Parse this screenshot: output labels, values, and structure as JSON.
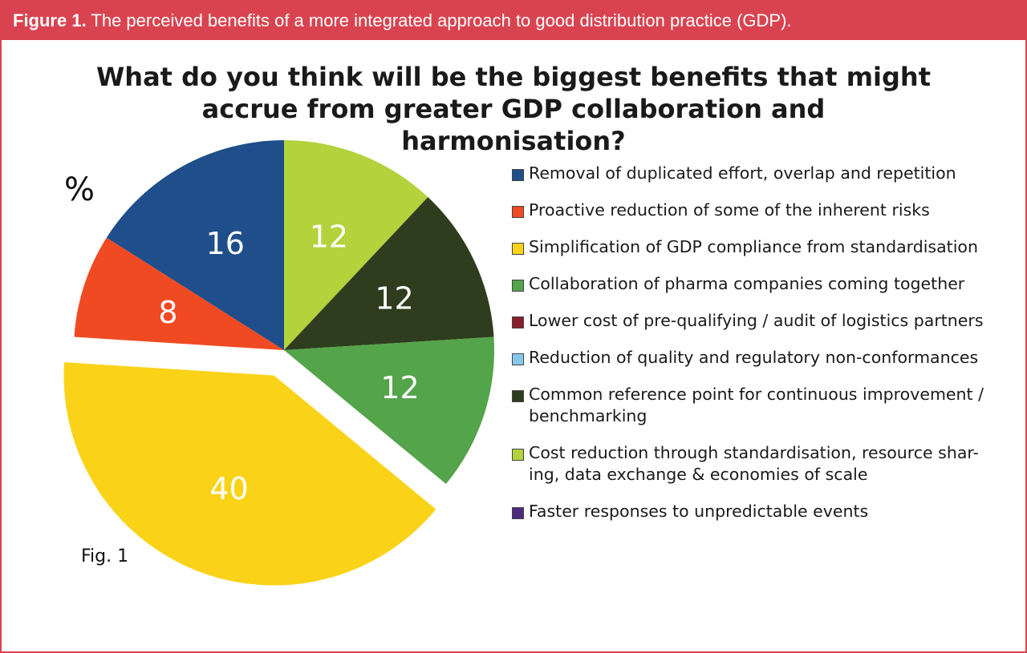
{
  "figure_caption": {
    "prefix": "Figure 1.",
    "text": " The perceived benefits of a more integrated approach to good distribution practice (GDP)."
  },
  "colors": {
    "frame": "#d9434f"
  },
  "chart_data": {
    "type": "pie",
    "title": [
      "What do you think will be the biggest benefits that might",
      "accrue from greater GDP collaboration and harmonisation?"
    ],
    "unit_label": "%",
    "footer_label": "Fig. 1",
    "legend_position": "right",
    "slices": [
      {
        "label": "Removal of duplicated effort, overlap and repetition",
        "value": 16,
        "color": "#1f4e8a",
        "label_color": "#ffffff",
        "exploded": false
      },
      {
        "label": "Proactive reduction of some of the inherent risks",
        "value": 8,
        "color": "#f04a23",
        "label_color": "#ffffff",
        "exploded": false
      },
      {
        "label": "Simplification of GDP compliance from standardisation",
        "value": 40,
        "color": "#fad319",
        "label_color": "#ffffff",
        "exploded": true
      },
      {
        "label": "Collaboration of pharma companies coming together",
        "value": 12,
        "color": "#54a44a",
        "label_color": "#ffffff",
        "exploded": false
      },
      {
        "label": "Lower cost of pre-qualifying / audit of logistics partners",
        "value": 0,
        "color": "#8a1d2e",
        "label_color": "#ffffff",
        "exploded": false
      },
      {
        "label": "Reduction of quality and regulatory non-conformances",
        "value": 0,
        "color": "#86c8ea",
        "label_color": "#ffffff",
        "exploded": false
      },
      {
        "label": "Common reference point for continuous improvement / benchmarking",
        "value": 12,
        "color": "#2e3d1e",
        "label_color": "#ffffff",
        "exploded": false
      },
      {
        "label": "Cost reduction through standardisation, resource shar-ing, data exchange & economies of scale",
        "value": 12,
        "color": "#b3d23c",
        "label_color": "#ffffff",
        "exploded": false
      },
      {
        "label": "Faster responses to unpredictable events",
        "value": 0,
        "color": "#4b2a7f",
        "label_color": "#ffffff",
        "exploded": false
      }
    ]
  }
}
